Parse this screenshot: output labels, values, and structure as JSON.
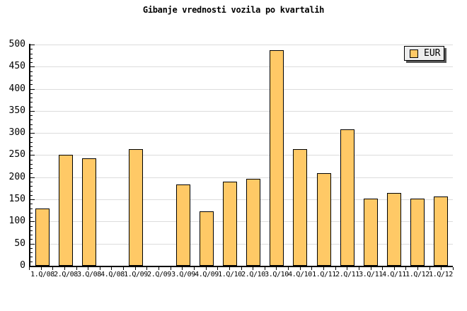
{
  "chart_data": {
    "type": "bar",
    "title": "Gibanje vrednosti vozila po kvartalih",
    "categories": [
      "1.Q/08",
      "2.Q/08",
      "3.Q/08",
      "4.Q/08",
      "1.Q/09",
      "2.Q/09",
      "3.Q/09",
      "4.Q/09",
      "1.Q/10",
      "2.Q/10",
      "3.Q/10",
      "4.Q/10",
      "1.Q/11",
      "2.Q/11",
      "3.Q/11",
      "4.Q/11",
      "1.Q/12",
      "1.Q/12"
    ],
    "values": [
      130,
      250,
      243,
      0,
      263,
      0,
      184,
      123,
      190,
      197,
      488,
      263,
      210,
      309,
      151,
      165,
      151,
      156
    ],
    "legend": [
      "EUR"
    ],
    "legend_position": "top-right",
    "xlabel": "",
    "ylabel": "",
    "ylim": [
      0,
      500
    ],
    "ytick_step": 50,
    "ytick_minor_step": 10,
    "y_tick_labels": [
      "0",
      "50",
      "100",
      "150",
      "200",
      "250",
      "300",
      "350",
      "400",
      "450",
      "500"
    ],
    "grid": "horizontal-only",
    "colors": {
      "bar_fill": "#FFC966",
      "bar_border": "#000000",
      "gridline": "#DCDCDC",
      "axis": "#000000",
      "background": "#FFFFFF",
      "legend_bg": "#EDEDED",
      "legend_shadow": "#555555"
    }
  }
}
